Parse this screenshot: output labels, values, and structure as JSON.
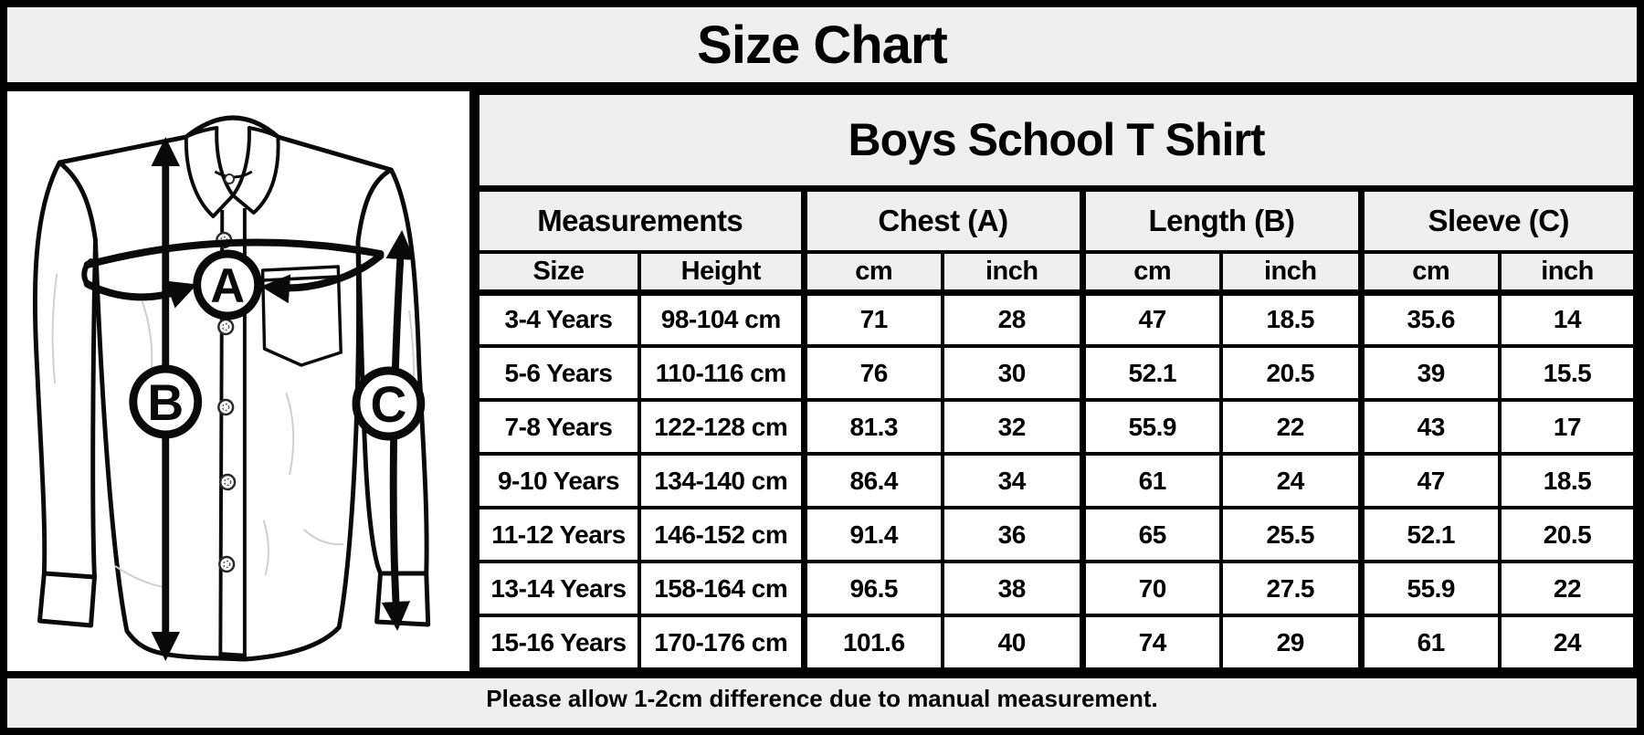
{
  "title": "Size Chart",
  "diagram": {
    "labels": {
      "a": "A",
      "b": "B",
      "c": "C"
    }
  },
  "table": {
    "title": "Boys School T Shirt",
    "group_headers": [
      "Measurements",
      "Chest (A)",
      "Length (B)",
      "Sleeve (C)"
    ],
    "sub_headers": [
      "Size",
      "Height",
      "cm",
      "inch",
      "cm",
      "inch",
      "cm",
      "inch"
    ],
    "rows": [
      [
        "3-4 Years",
        "98-104 cm",
        "71",
        "28",
        "47",
        "18.5",
        "35.6",
        "14"
      ],
      [
        "5-6 Years",
        "110-116 cm",
        "76",
        "30",
        "52.1",
        "20.5",
        "39",
        "15.5"
      ],
      [
        "7-8 Years",
        "122-128 cm",
        "81.3",
        "32",
        "55.9",
        "22",
        "43",
        "17"
      ],
      [
        "9-10 Years",
        "134-140 cm",
        "86.4",
        "34",
        "61",
        "24",
        "47",
        "18.5"
      ],
      [
        "11-12 Years",
        "146-152 cm",
        "91.4",
        "36",
        "65",
        "25.5",
        "52.1",
        "20.5"
      ],
      [
        "13-14 Years",
        "158-164 cm",
        "96.5",
        "38",
        "70",
        "27.5",
        "55.9",
        "22"
      ],
      [
        "15-16 Years",
        "170-176 cm",
        "101.6",
        "40",
        "74",
        "29",
        "61",
        "24"
      ]
    ],
    "footnote": "Please allow 1-2cm difference due to manual measurement."
  },
  "colors": {
    "background_gray": "#f0efef",
    "line_black": "#000000",
    "panel_white": "#ffffff"
  }
}
